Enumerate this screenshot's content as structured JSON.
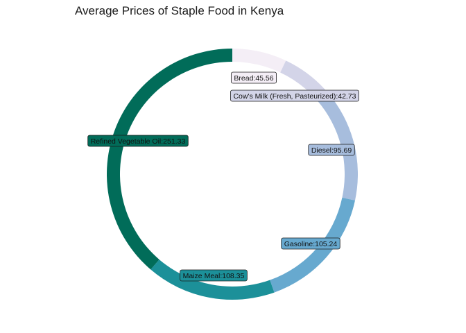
{
  "chart_data": {
    "type": "pie",
    "variant": "donut",
    "title": "Average Prices of Staple Food in Kenya",
    "legend": "none",
    "slices": [
      {
        "name": "Bread",
        "value": 45.56,
        "label": "Bread:45.56",
        "color": "#f4eef6"
      },
      {
        "name": "Cow's Milk (Fresh, Pasteurized)",
        "value": 42.73,
        "label": "Cow's Milk (Fresh, Pasteurized):42.73",
        "color": "#d3d4e8"
      },
      {
        "name": "Diesel",
        "value": 95.69,
        "label": "Diesel:95.69",
        "color": "#a7bddd"
      },
      {
        "name": "Gasoline",
        "value": 105.24,
        "label": "Gasoline:105.24",
        "color": "#67a9cf"
      },
      {
        "name": "Maize Meal",
        "value": 108.35,
        "label": "Maize Meal:108.35",
        "color": "#1c9099"
      },
      {
        "name": "Refined Vegetable Oil",
        "value": 251.33,
        "label": "Refined Vegetable Oil:251.33",
        "color": "#016c59"
      }
    ]
  }
}
